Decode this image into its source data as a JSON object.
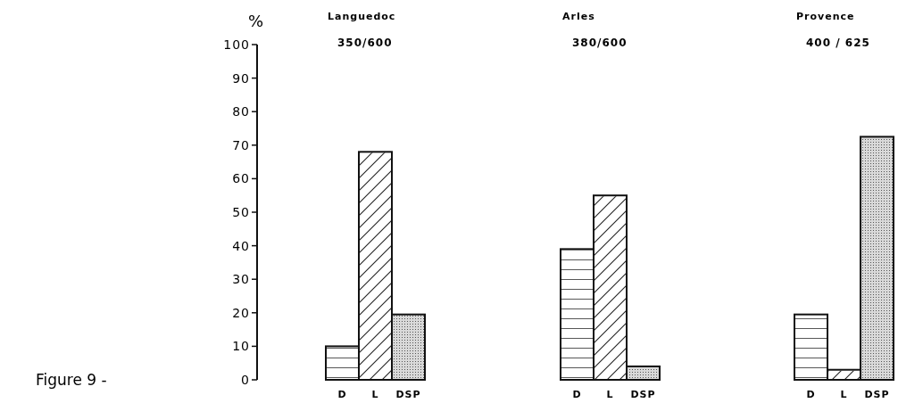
{
  "chart_data": [
    {
      "type": "bar",
      "title": "Languedoc",
      "subtitle": "350/600",
      "ylabel": "%",
      "categories": [
        "D",
        "L",
        "DSP"
      ],
      "values": [
        10,
        68,
        19.5
      ],
      "colors": [
        "#ffffff",
        "#ffffff",
        "#d9d9d9"
      ],
      "ylim": [
        0,
        100
      ],
      "yticks": [
        0,
        10,
        20,
        30,
        40,
        50,
        60,
        70,
        80,
        90,
        100
      ],
      "annotations": [
        "Figure 9 -"
      ]
    },
    {
      "type": "bar",
      "title": "Arles",
      "subtitle": "380/600",
      "categories": [
        "D",
        "L",
        "DSP"
      ],
      "values": [
        39,
        55,
        4
      ],
      "colors": [
        "#ffffff",
        "#ffffff",
        "#d9d9d9"
      ],
      "ylim": [
        0,
        100
      ],
      "tick_labels": "x"
    },
    {
      "type": "bar",
      "title": "Provence",
      "subtitle": "400 / 625",
      "categories": [
        "D",
        "L",
        "DSP"
      ],
      "values": [
        19.5,
        3,
        72.5
      ],
      "colors": [
        "#ffffff",
        "#ffffff",
        "#d9d9d9"
      ],
      "ylim": [
        0,
        100
      ],
      "tick_labels": "x"
    }
  ]
}
